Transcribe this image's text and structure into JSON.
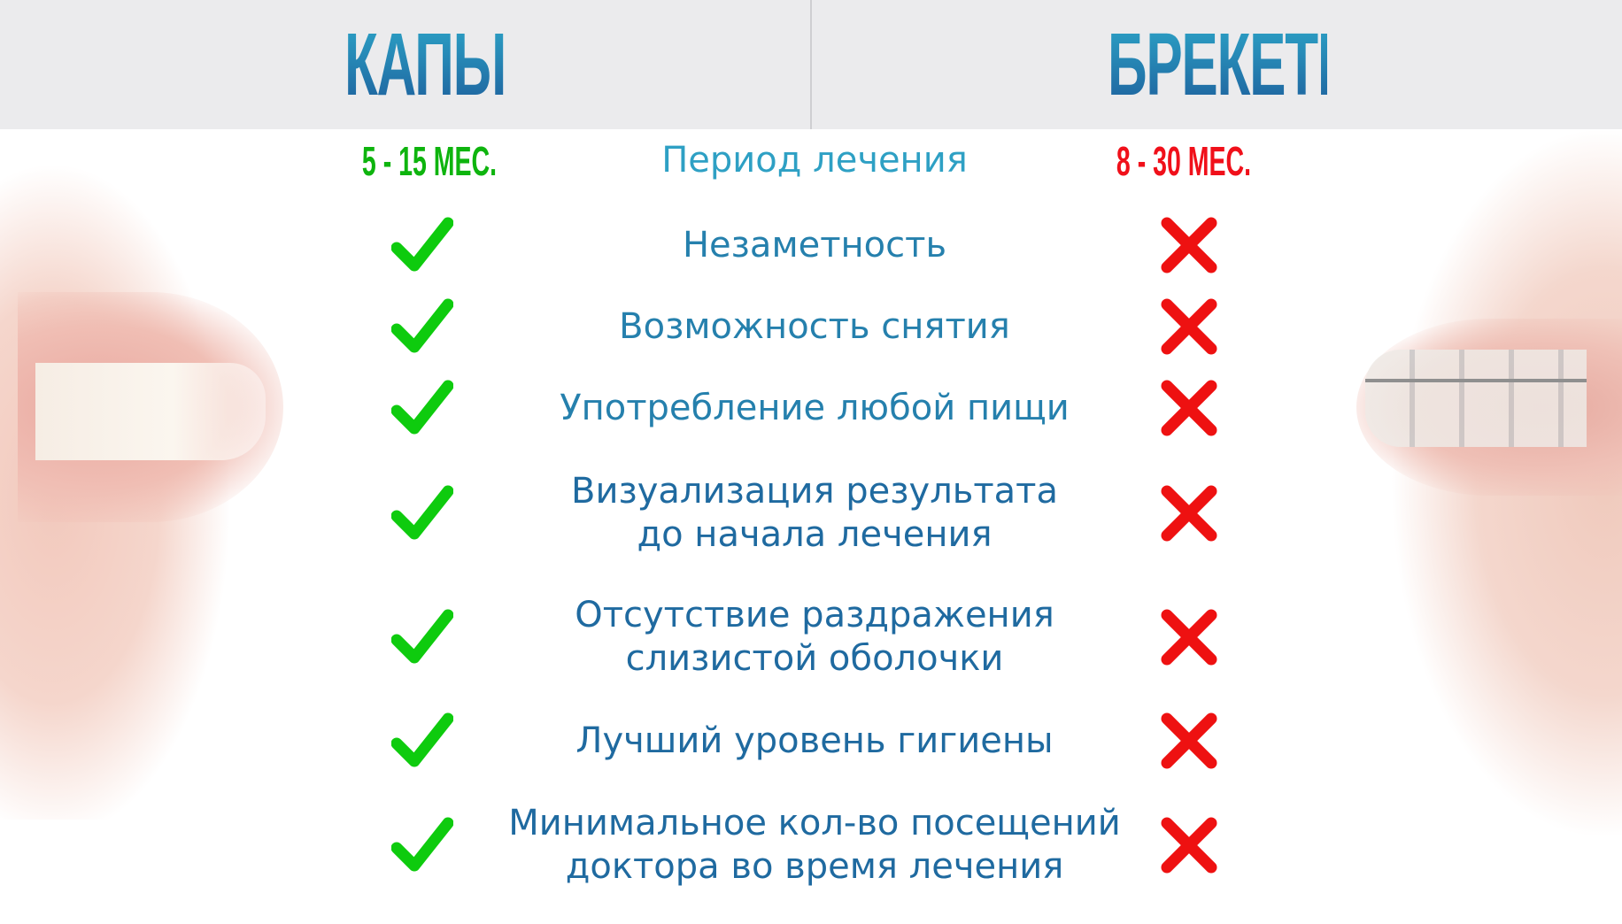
{
  "header": {
    "left_title": "КАПЫ",
    "right_title": "БРЕКЕТЫ"
  },
  "period": {
    "label": "Период лечения",
    "left_value": "5 - 15 МЕС.",
    "right_value": "8 - 30 МЕС."
  },
  "colors": {
    "check": "#0ecb0e",
    "cross": "#ee1111",
    "text": "#2580ad",
    "left_value": "#0eb40e",
    "right_value": "#f0101a"
  },
  "rows": [
    {
      "label": "Незаметность",
      "aligners": "check-icon",
      "braces": "cross-icon"
    },
    {
      "label": "Возможность снятия",
      "aligners": "check-icon",
      "braces": "cross-icon"
    },
    {
      "label": "Употребление любой пищи",
      "aligners": "check-icon",
      "braces": "cross-icon"
    },
    {
      "label": "Визуализация результата\nдо начала лечения",
      "aligners": "check-icon",
      "braces": "cross-icon"
    },
    {
      "label": "Отсутствие раздражения\nслизистой оболочки",
      "aligners": "check-icon",
      "braces": "cross-icon"
    },
    {
      "label": "Лучший уровень гигиены",
      "aligners": "check-icon",
      "braces": "cross-icon"
    },
    {
      "label": "Минимальное кол-во посещений\nдоктора во время лечения",
      "aligners": "check-icon",
      "braces": "cross-icon"
    }
  ]
}
